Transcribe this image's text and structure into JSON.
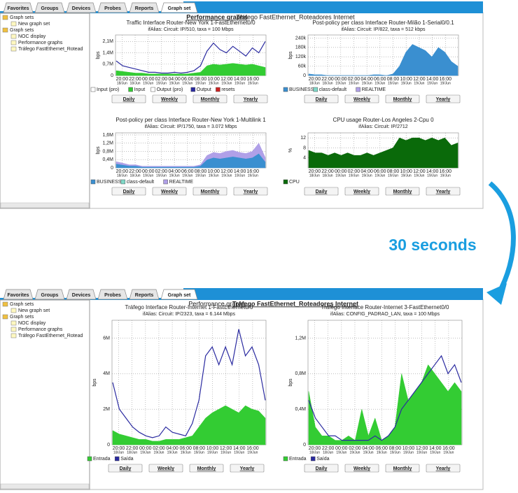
{
  "transition": "30 seconds",
  "buttons": [
    "Daily",
    "Weekly",
    "Monthly",
    "Yearly"
  ],
  "time_axis": {
    "labels": [
      "20:00",
      "22:00",
      "00:00",
      "02:00",
      "04:00",
      "06:00",
      "08:00",
      "10:00",
      "12:00",
      "14:00",
      "16:00"
    ],
    "dates": [
      "18/Jun",
      "18/Jun",
      "19/Jun",
      "19/Jun",
      "19/Jun",
      "19/Jun",
      "19/Jun",
      "19/Jun",
      "19/Jun",
      "19/Jun",
      "19/Jun"
    ]
  },
  "screens": [
    {
      "tabs": [
        "Favorites",
        "Groups",
        "Devices",
        "Probes",
        "Reports",
        "Graph set"
      ],
      "tree": [
        "Graph sets",
        "New graph set",
        "Graph sets",
        "NOC display",
        "Performance graphs",
        "Tráfego FastEthernet_Rotead"
      ],
      "header": [
        "Performance graphs",
        "Tráfego FastEthernet_Roteadores Internet"
      ],
      "graphs": [
        {
          "title": "Traffic Interface Router-New York 1-FastEthernet0/0",
          "subtitle": "ifAlias: Circuit: IP/510, taxa = 100 Mbps",
          "y_label": "bps",
          "ylim": [
            0,
            2500000
          ],
          "yticks": [
            0,
            {
              "value": 700000,
              "label": "0,7M"
            },
            {
              "value": 1400000,
              "label": "1,4M"
            },
            {
              "value": 2100000,
              "label": "2,1M"
            }
          ],
          "series": [
            {
              "name": "Input (pro)",
              "color": "#ffffff"
            },
            {
              "name": "Input",
              "color": "#33cc33",
              "style": "fill",
              "values": [
                300000,
                250000,
                200000,
                150000,
                150000,
                100000,
                100000,
                100000,
                100000,
                100000,
                100000,
                100000,
                150000,
                200000,
                600000,
                700000,
                650000,
                700000,
                750000,
                700000,
                650000,
                700000,
                600000,
                500000
              ]
            },
            {
              "name": "Output (pro)",
              "color": "#ffffff"
            },
            {
              "name": "Output",
              "color": "#2a2aa0",
              "style": "line",
              "values": [
                900000,
                600000,
                500000,
                400000,
                300000,
                200000,
                200000,
                150000,
                150000,
                200000,
                150000,
                200000,
                300000,
                600000,
                1500000,
                2000000,
                1600000,
                1400000,
                1800000,
                1500000,
                1200000,
                1700000,
                1400000,
                2100000
              ]
            },
            {
              "name": "resets",
              "color": "#cc2222"
            }
          ]
        },
        {
          "title": "Post-policy per class Interface Router-Milão 1-Serial0/0.1",
          "subtitle": "ifAlias: Circuit: IP/822, taxa = 512 kbps",
          "y_label": "bps",
          "ylim": [
            0,
            260000
          ],
          "yticks": [
            0,
            {
              "value": 60000,
              "label": "60k"
            },
            {
              "value": 120000,
              "label": "120k"
            },
            {
              "value": 180000,
              "label": "180k"
            },
            {
              "value": 240000,
              "label": "240k"
            }
          ],
          "series": [
            {
              "name": "BUSINESS",
              "color": "#3a8fd0",
              "style": "fill",
              "values": [
                10000,
                5000,
                5000,
                0,
                0,
                0,
                0,
                0,
                0,
                0,
                5000,
                5000,
                0,
                10000,
                60000,
                150000,
                200000,
                180000,
                160000,
                120000,
                180000,
                150000,
                90000,
                60000
              ]
            },
            {
              "name": "class-default",
              "color": "#7fd8c8"
            },
            {
              "name": "REALTIME",
              "color": "#b0a0e8"
            }
          ]
        },
        {
          "title": "Post-policy per class Interface Router-New York 1-Multilink 1",
          "subtitle": "ifAlias: Circuit: IP/1750, taxa = 3.072 Mbps",
          "y_label": "bps",
          "stacked": true,
          "ylim": [
            0,
            1700000
          ],
          "yticks": [
            0,
            {
              "value": 400000,
              "label": "0,4M"
            },
            {
              "value": 800000,
              "label": "0,8M"
            },
            {
              "value": 1200000,
              "label": "1,2M"
            },
            {
              "value": 1600000,
              "label": "1,6M"
            }
          ],
          "series": [
            {
              "name": "BUSINESS",
              "color": "#3a8fd0",
              "style": "fill",
              "values": [
                200000,
                150000,
                100000,
                100000,
                50000,
                50000,
                50000,
                50000,
                50000,
                50000,
                50000,
                50000,
                50000,
                100000,
                400000,
                500000,
                450000,
                500000,
                550000,
                500000,
                450000,
                500000,
                700000,
                300000
              ]
            },
            {
              "name": "class-default",
              "color": "#7fd8c8"
            },
            {
              "name": "REALTIME",
              "color": "#b0a0e8",
              "style": "fill",
              "values": [
                100000,
                80000,
                50000,
                50000,
                30000,
                30000,
                30000,
                30000,
                30000,
                30000,
                30000,
                30000,
                30000,
                50000,
                200000,
                250000,
                250000,
                300000,
                300000,
                250000,
                250000,
                300000,
                500000,
                200000
              ]
            }
          ]
        },
        {
          "title": "CPU usage Router-Los Angeles 2-Cpu 0",
          "subtitle": "ifAlias: Circuit: IP/2712",
          "y_label": "%",
          "ylim": [
            0,
            14
          ],
          "yticks": [
            4,
            8,
            12
          ],
          "series": [
            {
              "name": "CPU",
              "color": "#0a6a0a",
              "style": "fill",
              "values": [
                7,
                6,
                6,
                5,
                6,
                5,
                6,
                5,
                5,
                6,
                5,
                6,
                7,
                8,
                12,
                11,
                12,
                12,
                11,
                12,
                11,
                12,
                9,
                10
              ]
            }
          ]
        }
      ]
    },
    {
      "tabs": [
        "Favorites",
        "Groups",
        "Devices",
        "Probes",
        "Reports",
        "Graph set"
      ],
      "tree": [
        "Graph sets",
        "New graph set",
        "Graph sets",
        "NOC display",
        "Performance graphs",
        "Tráfego FastEthernet_Rotead"
      ],
      "header": [
        "Performance graphs",
        "Tráfego FastEthernet_Roteadores Internet"
      ],
      "graphs": [
        {
          "title": "Tráfego Interface Router-Internet 1-FastEthernet0/0",
          "subtitle": "ifAlias: Circuit: IP/2323, taxa = 6.144 Mbps",
          "y_label": "bps",
          "ylim": [
            0,
            7000000
          ],
          "yticks": [
            0,
            {
              "value": 2000000,
              "label": "2M"
            },
            {
              "value": 4000000,
              "label": "4M"
            },
            {
              "value": 6000000,
              "label": "6M"
            }
          ],
          "series": [
            {
              "name": "Entrada",
              "color": "#33cc33",
              "style": "fill",
              "values": [
                800000,
                600000,
                500000,
                400000,
                300000,
                300000,
                200000,
                200000,
                300000,
                300000,
                300000,
                400000,
                500000,
                1000000,
                1500000,
                1800000,
                2000000,
                2200000,
                2000000,
                1800000,
                2200000,
                2000000,
                1900000,
                1500000
              ]
            },
            {
              "name": "Saída",
              "color": "#2a2aa0",
              "style": "line",
              "values": [
                3500000,
                2000000,
                1500000,
                1000000,
                700000,
                500000,
                400000,
                500000,
                1000000,
                700000,
                600000,
                500000,
                1200000,
                2500000,
                5000000,
                5500000,
                4500000,
                5500000,
                4500000,
                6500000,
                5000000,
                5500000,
                4500000,
                2500000
              ]
            }
          ]
        },
        {
          "title": "Tráfego Interface Router-Internet 3-FastEthernet0/0",
          "subtitle": "ifAlias: CONFIG_PADRAO_LAN, taxa = 100 Mbps",
          "y_label": "bps",
          "ylim": [
            0,
            1400000
          ],
          "yticks": [
            0,
            {
              "value": 400000,
              "label": "0,4M"
            },
            {
              "value": 800000,
              "label": "0,8M"
            },
            {
              "value": 1200000,
              "label": "1,2M"
            }
          ],
          "series": [
            {
              "name": "Entrada",
              "color": "#33cc33",
              "style": "fill",
              "values": [
                600000,
                200000,
                100000,
                100000,
                50000,
                50000,
                100000,
                50000,
                400000,
                100000,
                300000,
                50000,
                100000,
                200000,
                800000,
                500000,
                600000,
                700000,
                900000,
                800000,
                700000,
                600000,
                700000,
                600000
              ]
            },
            {
              "name": "Saída",
              "color": "#2a2aa0",
              "style": "line",
              "values": [
                500000,
                300000,
                200000,
                100000,
                100000,
                50000,
                50000,
                50000,
                50000,
                50000,
                100000,
                50000,
                100000,
                200000,
                400000,
                500000,
                600000,
                700000,
                800000,
                900000,
                1000000,
                800000,
                900000,
                700000
              ]
            }
          ]
        }
      ]
    }
  ]
}
